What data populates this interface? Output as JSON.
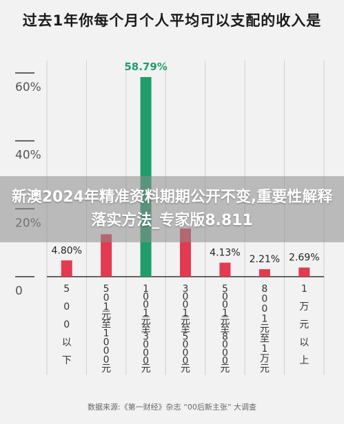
{
  "title": "过去1年你每个月个人平均可以支配的收入是",
  "overlay_text": "新澳2024年精准资料期期公开不变,重要性解释落实方法_专家版8.811",
  "source": "数据来源:《第一财经》杂志 “00后新主张” 大调查",
  "colors": {
    "bar_default": "#e23a4f",
    "bar_highlight": "#1f9d6b",
    "highlight_label": "#1f9d6b",
    "axis": "#333333",
    "grid": "#cfcfcf"
  },
  "chart_data": {
    "type": "bar",
    "title": "过去1年你每个月个人平均可以支配的收入是",
    "categories": [
      "500以下",
      "501元至1000元",
      "1001元至3000元",
      "3001元至5000元",
      "5001元至8000元",
      "8001元至1万元",
      "1万元以上"
    ],
    "values": [
      4.8,
      12.5,
      58.79,
      14.2,
      4.13,
      2.21,
      2.69
    ],
    "data_labels": [
      "4.80%",
      "",
      "58.79%",
      "",
      "4.13%",
      "2.21%",
      "2.69%"
    ],
    "highlight_index": 2,
    "ylim": [
      0,
      60
    ],
    "yticks": [
      0,
      20,
      40,
      60
    ],
    "ytick_labels": [
      "0",
      "20%",
      "40%",
      "60%"
    ],
    "grid": true,
    "legend": "none"
  }
}
